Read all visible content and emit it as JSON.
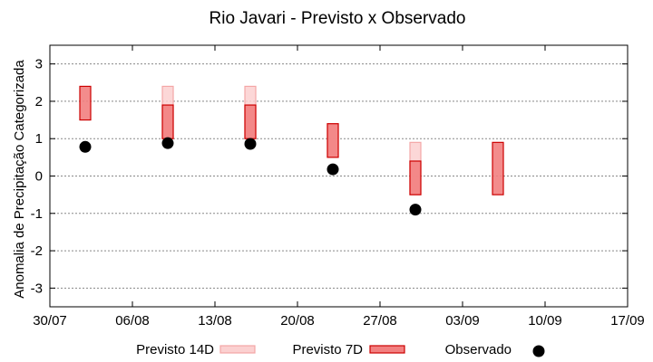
{
  "chart_data": {
    "type": "range",
    "title": "Rio Javari - Previsto x Observado",
    "xlabel": "",
    "ylabel": "Anomalia de Precipitação Categorizada",
    "ylim": [
      -3.5,
      3.5
    ],
    "xlim": [
      "30/07",
      "17/09"
    ],
    "yticks": [
      -3,
      -2,
      -1,
      0,
      1,
      2,
      3
    ],
    "xtick_labels": [
      "30/07",
      "06/08",
      "13/08",
      "20/08",
      "27/08",
      "03/09",
      "10/09",
      "17/09"
    ],
    "grid": true,
    "legend_position": "bottom",
    "series": [
      {
        "name": "Previsto 14D",
        "kind": "range-bar",
        "color": "#f4a6a6",
        "fill": "#fbd0d0",
        "points": [
          {
            "x": 7,
            "low": 1.0,
            "high": 2.4
          },
          {
            "x": 14,
            "low": 1.0,
            "high": 2.4
          },
          {
            "x": 21,
            "low": 0.5,
            "high": 1.4
          },
          {
            "x": 28,
            "low": -0.5,
            "high": 0.9
          }
        ]
      },
      {
        "name": "Previsto 7D",
        "kind": "range-bar",
        "color": "#cc0000",
        "fill": "#f28080",
        "points": [
          {
            "x": 0,
            "low": 1.5,
            "high": 2.4
          },
          {
            "x": 7,
            "low": 1.0,
            "high": 1.9
          },
          {
            "x": 14,
            "low": 1.0,
            "high": 1.9
          },
          {
            "x": 21,
            "low": 0.5,
            "high": 1.4
          },
          {
            "x": 28,
            "low": -0.5,
            "high": 0.4
          },
          {
            "x": 35,
            "low": -0.5,
            "high": 0.9
          }
        ]
      },
      {
        "name": "Observado",
        "kind": "scatter",
        "color": "#000000",
        "points": [
          {
            "x": 0,
            "y": 0.78
          },
          {
            "x": 7,
            "y": 0.88
          },
          {
            "x": 14,
            "y": 0.86
          },
          {
            "x": 21,
            "y": 0.18
          },
          {
            "x": 28,
            "y": -0.9
          }
        ]
      }
    ]
  }
}
